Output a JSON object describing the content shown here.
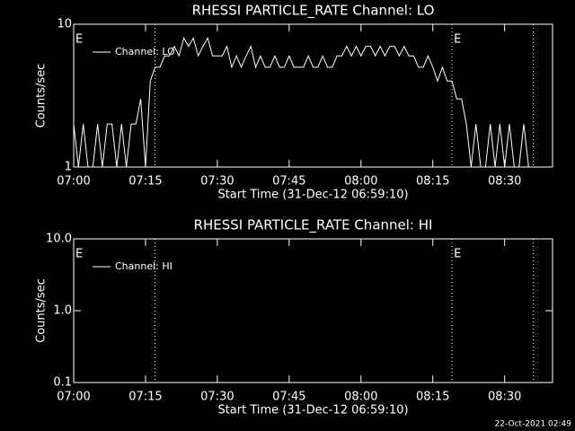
{
  "chart_data": [
    {
      "type": "line",
      "title": "RHESSI PARTICLE_RATE Channel: LO",
      "xlabel": "Start Time (31-Dec-12 06:59:10)",
      "ylabel": "Counts/sec",
      "x": [
        "07:00",
        "07:01",
        "07:02",
        "07:03",
        "07:04",
        "07:05",
        "07:06",
        "07:07",
        "07:08",
        "07:09",
        "07:10",
        "07:11",
        "07:12",
        "07:13",
        "07:14",
        "07:15",
        "07:16",
        "07:17",
        "07:18",
        "07:19",
        "07:20",
        "07:21",
        "07:22",
        "07:23",
        "07:24",
        "07:25",
        "07:26",
        "07:27",
        "07:28",
        "07:29",
        "07:30",
        "07:31",
        "07:32",
        "07:33",
        "07:34",
        "07:35",
        "07:36",
        "07:37",
        "07:38",
        "07:39",
        "07:40",
        "07:41",
        "07:42",
        "07:43",
        "07:44",
        "07:45",
        "07:46",
        "07:47",
        "07:48",
        "07:49",
        "07:50",
        "07:51",
        "07:52",
        "07:53",
        "07:54",
        "07:55",
        "07:56",
        "07:57",
        "07:58",
        "07:59",
        "08:00",
        "08:01",
        "08:02",
        "08:03",
        "08:04",
        "08:05",
        "08:06",
        "08:07",
        "08:08",
        "08:09",
        "08:10",
        "08:11",
        "08:12",
        "08:13",
        "08:14",
        "08:15",
        "08:16",
        "08:17",
        "08:18",
        "08:19",
        "08:20",
        "08:21",
        "08:22",
        "08:23",
        "08:24",
        "08:25",
        "08:26",
        "08:27",
        "08:28",
        "08:29",
        "08:30",
        "08:31",
        "08:32",
        "08:33",
        "08:34",
        "08:35",
        "08:36",
        "08:37",
        "08:38",
        "08:39"
      ],
      "series": [
        {
          "name": "Channel: LO",
          "color": "#ffffff",
          "values": [
            2,
            1,
            2,
            1,
            1,
            2,
            1,
            2,
            2,
            1,
            2,
            1,
            2,
            2,
            3,
            1,
            4,
            5,
            5,
            6,
            6,
            7,
            6,
            8,
            7,
            8,
            6,
            7,
            8,
            6,
            6,
            6,
            7,
            5,
            6,
            5,
            6,
            7,
            5,
            6,
            5,
            5,
            6,
            5,
            5,
            6,
            5,
            5,
            5,
            6,
            5,
            5,
            6,
            5,
            5,
            6,
            6,
            7,
            6,
            7,
            6,
            7,
            7,
            6,
            7,
            6,
            7,
            7,
            6,
            7,
            6,
            6,
            5,
            5,
            6,
            5,
            4,
            5,
            4,
            4,
            3,
            3,
            2,
            1,
            2,
            1,
            1,
            2,
            1,
            2,
            1,
            2,
            1,
            1,
            2,
            1,
            1,
            1,
            1,
            1
          ]
        }
      ],
      "xlim": [
        "07:00",
        "08:40"
      ],
      "xticks": [
        "07:00",
        "07:15",
        "07:30",
        "07:45",
        "08:00",
        "08:15",
        "08:30"
      ],
      "ylim": [
        1,
        10
      ],
      "yticks": [
        1,
        10
      ],
      "log_y": true,
      "vlines": [
        "07:17",
        "08:19",
        "08:36"
      ],
      "annotations": [
        {
          "text": "E",
          "x": "07:00"
        },
        {
          "text": "E",
          "x": "08:19"
        }
      ]
    },
    {
      "type": "line",
      "title": "RHESSI PARTICLE_RATE Channel: HI",
      "xlabel": "Start Time (31-Dec-12 06:59:10)",
      "ylabel": "Counts/sec",
      "x": [],
      "series": [
        {
          "name": "Channel: HI",
          "color": "#ffffff",
          "values": []
        }
      ],
      "xlim": [
        "07:00",
        "08:40"
      ],
      "xticks": [
        "07:00",
        "07:15",
        "07:30",
        "07:45",
        "08:00",
        "08:15",
        "08:30"
      ],
      "ylim": [
        0.1,
        10
      ],
      "yticks": [
        {
          "value": 0.1,
          "label": "0.1"
        },
        {
          "value": 1,
          "label": "1.0"
        },
        {
          "value": 10,
          "label": "10.0"
        }
      ],
      "log_y": true,
      "vlines": [
        "07:17",
        "08:19",
        "08:36"
      ],
      "annotations": [
        {
          "text": "E",
          "x": "07:00"
        },
        {
          "text": "E",
          "x": "08:19"
        }
      ]
    }
  ],
  "footer": "22-Oct-2021 02:49"
}
